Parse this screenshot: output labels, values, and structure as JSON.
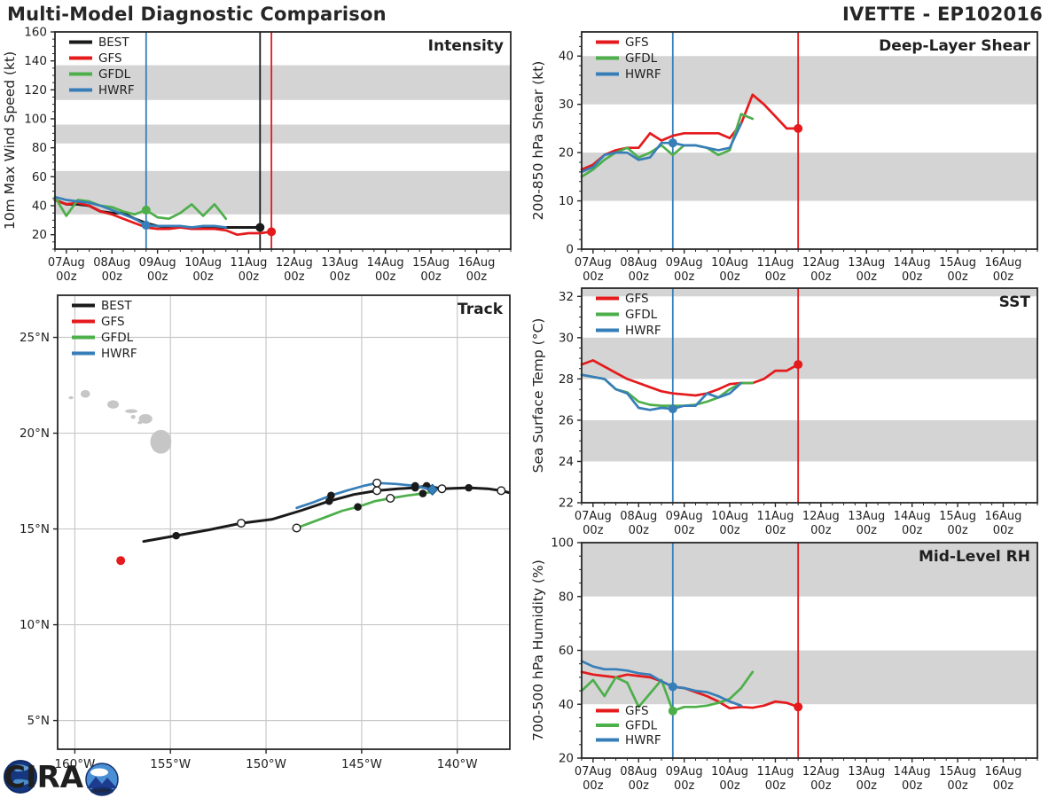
{
  "header": {
    "title": "Multi-Model Diagnostic Comparison",
    "storm_id": "IVETTE - EP102016"
  },
  "logo": {
    "text": "CIRA",
    "badge": "RAMMB"
  },
  "colors": {
    "BEST": "#1a1a1a",
    "GFS": "#e41a1c",
    "GFDL": "#4daf4a",
    "HWRF": "#377eb8",
    "band": "#d4d4d4",
    "grid": "#c8c8c8",
    "land": "#c6c6c6",
    "frame": "#262626"
  },
  "time_axis": {
    "days": [
      "07Aug",
      "08Aug",
      "09Aug",
      "10Aug",
      "11Aug",
      "12Aug",
      "13Aug",
      "14Aug",
      "15Aug",
      "16Aug"
    ],
    "sub_label": "00z",
    "xlim": [
      -0.25,
      9.75
    ],
    "xticks": [
      0,
      1,
      2,
      3,
      4,
      5,
      6,
      7,
      8,
      9
    ],
    "xminor_step": 0.25
  },
  "chart_data": [
    {
      "id": "intensity",
      "type": "line",
      "title": "Intensity",
      "ylabel": "10m Max Wind Speed (kt)",
      "ylim": [
        10,
        160
      ],
      "yticks": [
        20,
        40,
        60,
        80,
        100,
        120,
        140,
        160
      ],
      "yminor_step": 5,
      "bands": [
        [
          34,
          64
        ],
        [
          83,
          96
        ],
        [
          113,
          137
        ]
      ],
      "legend": [
        "BEST",
        "GFS",
        "GFDL",
        "HWRF"
      ],
      "vlines": [
        {
          "x": 1.75,
          "c": "HWRF"
        },
        {
          "x": 4.25,
          "c": "BEST"
        },
        {
          "x": 4.5,
          "c": "GFS"
        }
      ],
      "series": [
        {
          "name": "BEST",
          "c": "BEST",
          "x0": -0.25,
          "dx": 0.25,
          "values": [
            44,
            41,
            41,
            40,
            36,
            35,
            35,
            31,
            28,
            26,
            25,
            25,
            25,
            25,
            25,
            25,
            25,
            25,
            25
          ]
        },
        {
          "name": "GFS",
          "c": "GFS",
          "x0": -0.25,
          "dx": 0.25,
          "values": [
            44,
            41,
            42,
            40,
            36,
            34,
            31,
            28,
            25,
            24,
            24,
            25,
            24,
            24,
            24,
            23,
            20,
            21,
            21,
            22
          ]
        },
        {
          "name": "GFDL",
          "c": "GFDL",
          "x0": -0.25,
          "dx": 0.25,
          "values": [
            46,
            33,
            44,
            43,
            40,
            39,
            36,
            34,
            37,
            32,
            31,
            35,
            41,
            33,
            41,
            31
          ]
        },
        {
          "name": "HWRF",
          "c": "HWRF",
          "x0": -0.25,
          "dx": 0.25,
          "values": [
            46,
            44,
            43,
            42,
            40,
            37,
            34,
            31,
            26.5,
            26,
            26,
            26,
            25,
            26,
            26,
            25
          ]
        }
      ],
      "dots": [
        {
          "x": 1.75,
          "y": 26.5,
          "c": "HWRF"
        },
        {
          "x": 1.75,
          "y": 37,
          "c": "GFDL"
        },
        {
          "x": 4.25,
          "y": 25,
          "c": "BEST"
        },
        {
          "x": 4.5,
          "y": 22,
          "c": "GFS"
        }
      ]
    },
    {
      "id": "shear",
      "type": "line",
      "title": "Deep-Layer Shear",
      "ylabel": "200-850 hPa Shear (kt)",
      "ylim": [
        0,
        45
      ],
      "yticks": [
        0,
        10,
        20,
        30,
        40
      ],
      "yminor_step": 2,
      "bands": [
        [
          10,
          20
        ],
        [
          30,
          40
        ]
      ],
      "legend": [
        "GFS",
        "GFDL",
        "HWRF"
      ],
      "vlines": [
        {
          "x": 1.75,
          "c": "HWRF"
        },
        {
          "x": 4.5,
          "c": "GFS"
        }
      ],
      "series": [
        {
          "name": "GFS",
          "c": "GFS",
          "x0": -0.25,
          "dx": 0.25,
          "values": [
            16.5,
            17.5,
            19.5,
            20.5,
            21,
            21,
            24,
            22.5,
            23.5,
            24,
            24,
            24,
            24,
            23,
            26,
            32,
            30,
            27.5,
            25,
            25
          ]
        },
        {
          "name": "GFDL",
          "c": "GFDL",
          "x0": -0.25,
          "dx": 0.25,
          "values": [
            15,
            16.5,
            18.5,
            20,
            21,
            19,
            20,
            21.5,
            19.5,
            21.5,
            21.5,
            21,
            19.5,
            20.5,
            28,
            27
          ]
        },
        {
          "name": "HWRF",
          "c": "HWRF",
          "x0": -0.25,
          "dx": 0.25,
          "values": [
            16,
            17,
            19.5,
            20,
            20,
            18.5,
            19,
            22,
            22,
            21.5,
            21.5,
            21,
            20.5,
            21,
            26
          ]
        }
      ],
      "dots": [
        {
          "x": 1.75,
          "y": 22,
          "c": "HWRF"
        },
        {
          "x": 4.5,
          "y": 25,
          "c": "GFS"
        }
      ]
    },
    {
      "id": "sst",
      "type": "line",
      "title": "SST",
      "ylabel": "Sea Surface Temp (°C)",
      "ylim": [
        22,
        32.4
      ],
      "yticks": [
        22,
        24,
        26,
        28,
        30,
        32
      ],
      "yminor_step": 0.5,
      "bands": [
        [
          24,
          26
        ],
        [
          28,
          30
        ],
        [
          32,
          32.4
        ]
      ],
      "legend": [
        "GFS",
        "GFDL",
        "HWRF"
      ],
      "vlines": [
        {
          "x": 1.75,
          "c": "HWRF"
        },
        {
          "x": 4.5,
          "c": "GFS"
        }
      ],
      "series": [
        {
          "name": "GFS",
          "c": "GFS",
          "x0": -0.25,
          "dx": 0.25,
          "values": [
            28.7,
            28.9,
            28.6,
            28.3,
            28.0,
            27.8,
            27.6,
            27.4,
            27.3,
            27.25,
            27.2,
            27.3,
            27.5,
            27.75,
            27.8,
            27.8,
            28.0,
            28.4,
            28.4,
            28.7
          ]
        },
        {
          "name": "GFDL",
          "c": "GFDL",
          "x0": -0.25,
          "dx": 0.25,
          "values": [
            28.2,
            28.1,
            28.0,
            27.5,
            27.35,
            26.9,
            26.75,
            26.7,
            26.7,
            26.7,
            26.75,
            26.9,
            27.1,
            27.5,
            27.8,
            27.8
          ]
        },
        {
          "name": "HWRF",
          "c": "HWRF",
          "x0": -0.25,
          "dx": 0.25,
          "values": [
            28.2,
            28.1,
            28.0,
            27.5,
            27.3,
            26.6,
            26.5,
            26.6,
            26.55,
            26.7,
            26.7,
            27.3,
            27.1,
            27.3,
            27.8
          ]
        }
      ],
      "dots": [
        {
          "x": 1.75,
          "y": 26.55,
          "c": "HWRF"
        },
        {
          "x": 4.5,
          "y": 28.7,
          "c": "GFS"
        }
      ]
    },
    {
      "id": "rh",
      "type": "line",
      "title": "Mid-Level RH",
      "ylabel": "700-500 hPa Humidity (%)",
      "ylim": [
        20,
        100
      ],
      "yticks": [
        20,
        40,
        60,
        80,
        100
      ],
      "yminor_step": 5,
      "bands": [
        [
          40,
          60
        ],
        [
          80,
          100
        ]
      ],
      "legend": [
        "GFS",
        "GFDL",
        "HWRF"
      ],
      "legend_pos": "bottom-left",
      "vlines": [
        {
          "x": 1.75,
          "c": "HWRF"
        },
        {
          "x": 4.5,
          "c": "GFS"
        }
      ],
      "series": [
        {
          "name": "GFS",
          "c": "GFS",
          "x0": -0.25,
          "dx": 0.25,
          "values": [
            52,
            51,
            50.5,
            50,
            51,
            50.5,
            50,
            48.5,
            46.5,
            46,
            44.5,
            43,
            41,
            38.5,
            39,
            38.7,
            39.5,
            41,
            40.5,
            39
          ]
        },
        {
          "name": "GFDL",
          "c": "GFDL",
          "x0": -0.25,
          "dx": 0.25,
          "values": [
            45,
            49,
            43,
            50,
            48,
            39,
            44,
            49,
            37.5,
            39,
            39,
            39.5,
            40.5,
            42,
            46,
            52
          ]
        },
        {
          "name": "HWRF",
          "c": "HWRF",
          "x0": -0.25,
          "dx": 0.25,
          "values": [
            56,
            54,
            53,
            53,
            52.5,
            51.5,
            51,
            48.5,
            46.5,
            46,
            45,
            44.5,
            43,
            41,
            39.5
          ]
        }
      ],
      "dots": [
        {
          "x": 1.75,
          "y": 46.5,
          "c": "HWRF"
        },
        {
          "x": 1.75,
          "y": 37.5,
          "c": "GFDL"
        },
        {
          "x": 4.5,
          "y": 39,
          "c": "GFS"
        }
      ]
    },
    {
      "id": "track",
      "type": "track",
      "title": "Track",
      "xlim": [
        -160.9,
        -137.25
      ],
      "ylim": [
        3.5,
        27.2
      ],
      "xticks": [
        -160,
        -155,
        -150,
        -145,
        -140
      ],
      "xtick_labels": [
        "160°W",
        "155°W",
        "150°W",
        "145°W",
        "140°W"
      ],
      "yticks": [
        5,
        10,
        15,
        20,
        25
      ],
      "ytick_labels": [
        "5°N",
        "10°N",
        "15°N",
        "20°N",
        "25°N"
      ],
      "legend": [
        "BEST",
        "GFS",
        "GFDL",
        "HWRF"
      ],
      "islands": [
        {
          "cx": -160.2,
          "cy": 21.85,
          "rx": 0.12,
          "ry": 0.08
        },
        {
          "cx": -159.45,
          "cy": 22.05,
          "rx": 0.25,
          "ry": 0.2
        },
        {
          "cx": -158.0,
          "cy": 21.5,
          "rx": 0.3,
          "ry": 0.22
        },
        {
          "cx": -157.05,
          "cy": 21.15,
          "rx": 0.32,
          "ry": 0.1
        },
        {
          "cx": -156.95,
          "cy": 20.85,
          "rx": 0.12,
          "ry": 0.1
        },
        {
          "cx": -156.3,
          "cy": 20.75,
          "rx": 0.35,
          "ry": 0.25
        },
        {
          "cx": -156.6,
          "cy": 20.55,
          "rx": 0.12,
          "ry": 0.08
        },
        {
          "cx": -155.5,
          "cy": 19.55,
          "rx": 0.55,
          "ry": 0.62
        }
      ],
      "tracks": [
        {
          "name": "BEST",
          "c": "BEST",
          "points": [
            [
              -156.4,
              14.35,
              ""
            ],
            [
              -154.7,
              14.65,
              "f"
            ],
            [
              -153.0,
              14.95,
              ""
            ],
            [
              -151.3,
              15.3,
              "o"
            ],
            [
              -149.7,
              15.5,
              ""
            ],
            [
              -148.2,
              15.95,
              ""
            ],
            [
              -146.7,
              16.45,
              "f"
            ],
            [
              -145.4,
              16.8,
              ""
            ],
            [
              -144.2,
              17.0,
              "o"
            ],
            [
              -143.1,
              17.1,
              ""
            ],
            [
              -142.2,
              17.15,
              "f"
            ],
            [
              -141.6,
              17.25,
              "f"
            ],
            [
              -140.8,
              17.1,
              "o"
            ],
            [
              -139.4,
              17.15,
              "f"
            ],
            [
              -138.4,
              17.1,
              ""
            ],
            [
              -137.7,
              17.0,
              "o"
            ],
            [
              -137.3,
              16.9,
              ""
            ]
          ]
        },
        {
          "name": "GFDL",
          "c": "GFDL",
          "points": [
            [
              -148.4,
              15.05,
              "o"
            ],
            [
              -147.2,
              15.5,
              ""
            ],
            [
              -146.0,
              15.95,
              ""
            ],
            [
              -145.2,
              16.15,
              "f"
            ],
            [
              -144.3,
              16.45,
              ""
            ],
            [
              -143.5,
              16.6,
              "o"
            ],
            [
              -142.6,
              16.75,
              ""
            ],
            [
              -141.8,
              16.85,
              "f"
            ],
            [
              -141.2,
              16.95,
              ""
            ]
          ]
        },
        {
          "name": "HWRF",
          "c": "HWRF",
          "points": [
            [
              -148.4,
              16.1,
              ""
            ],
            [
              -147.5,
              16.4,
              ""
            ],
            [
              -146.6,
              16.75,
              "f"
            ],
            [
              -145.8,
              17.0,
              ""
            ],
            [
              -144.9,
              17.25,
              ""
            ],
            [
              -144.2,
              17.4,
              "o"
            ],
            [
              -143.2,
              17.35,
              ""
            ],
            [
              -142.2,
              17.25,
              "f"
            ],
            [
              -141.3,
              17.05,
              "D"
            ]
          ]
        }
      ],
      "dots": [
        {
          "x": -157.6,
          "y": 13.35,
          "c": "GFS"
        }
      ]
    }
  ]
}
